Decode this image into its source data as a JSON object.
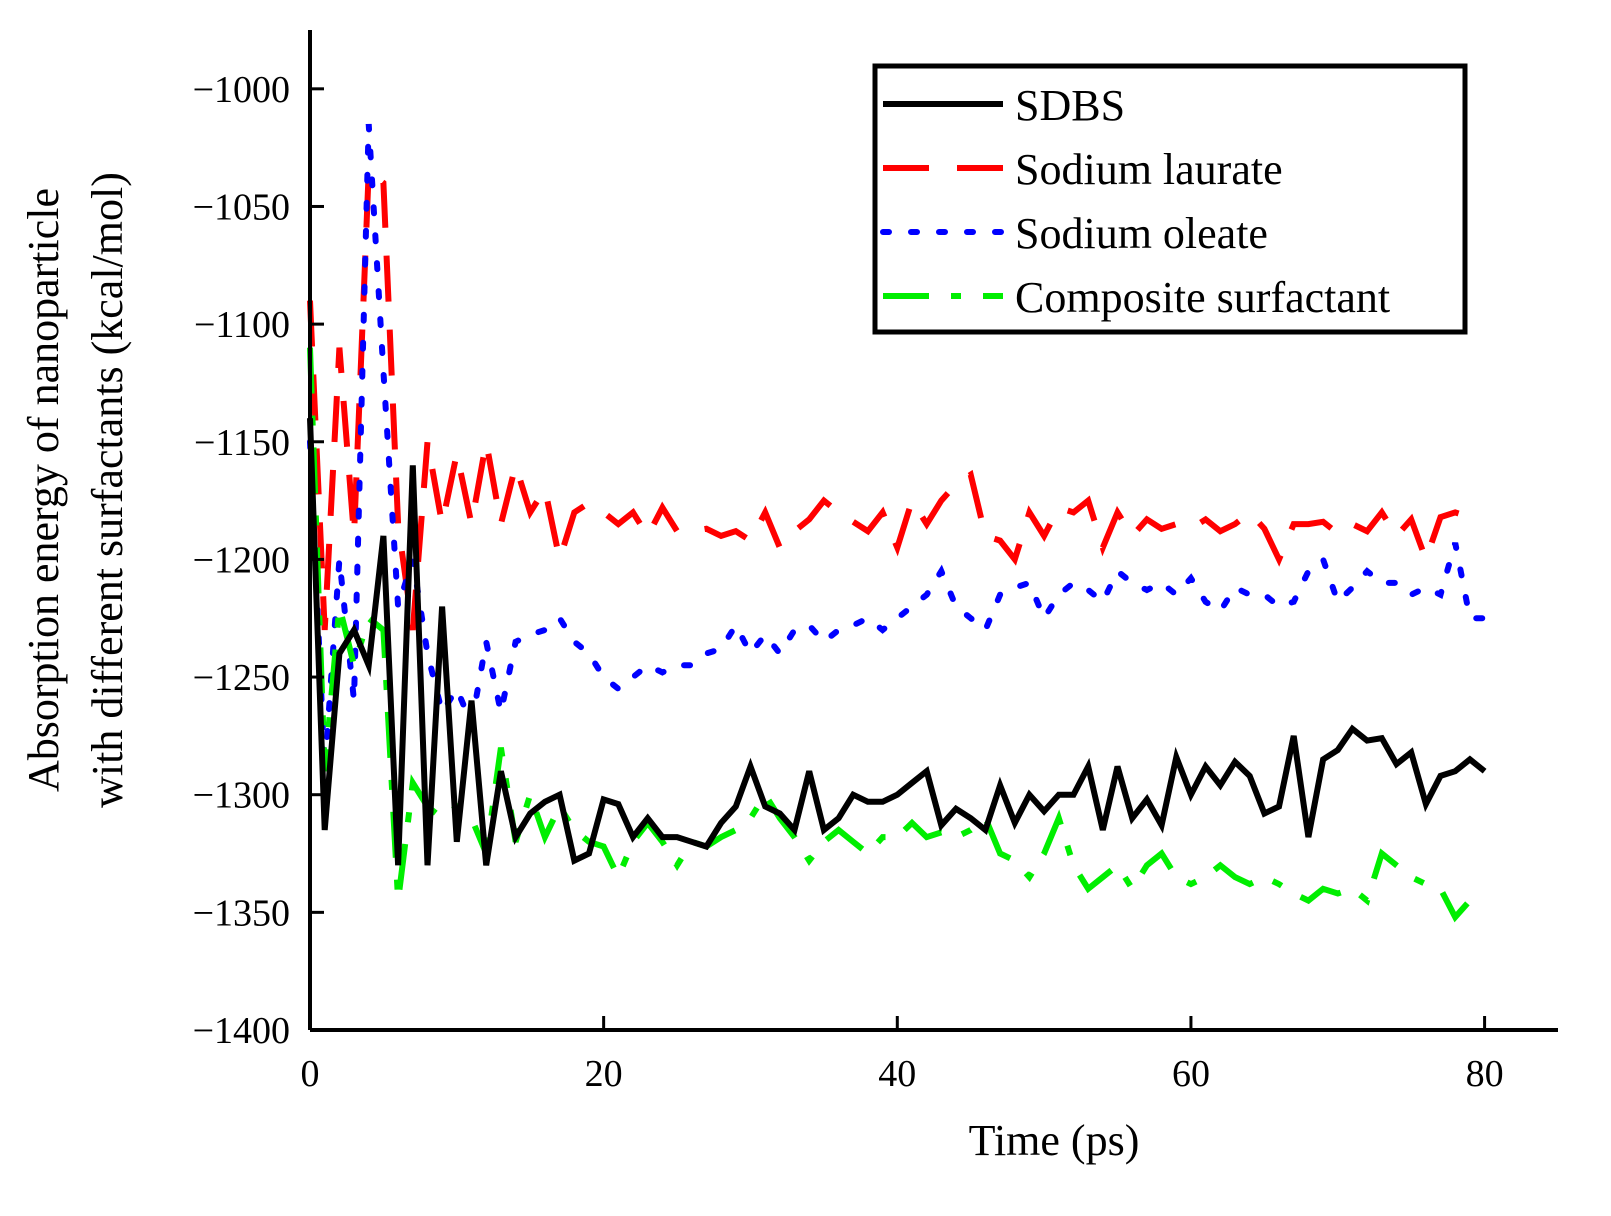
{
  "chart_data": {
    "type": "line",
    "xlabel": "Time (ps)",
    "ylabel_lines": [
      "Absorption energy of nanoparticle",
      "with different surfactants (kcal/mol)"
    ],
    "xlim": [
      0,
      85
    ],
    "ylim": [
      -1400,
      -975
    ],
    "xticks": [
      0,
      20,
      40,
      60,
      80
    ],
    "yticks": [
      -1000,
      -1050,
      -1100,
      -1150,
      -1200,
      -1250,
      -1300,
      -1350,
      -1400
    ],
    "legend_position": "top-right",
    "series": [
      {
        "name": "SDBS",
        "color": "#000000",
        "style": "solid",
        "x": [
          0,
          1,
          2,
          3,
          4,
          5,
          6,
          7,
          8,
          9,
          10,
          11,
          12,
          13,
          14,
          15,
          16,
          17,
          18,
          19,
          20,
          21,
          22,
          23,
          24,
          25,
          26,
          27,
          28,
          29,
          30,
          31,
          32,
          33,
          34,
          35,
          36,
          37,
          38,
          39,
          40,
          41,
          42,
          43,
          44,
          45,
          46,
          47,
          48,
          49,
          50,
          51,
          52,
          53,
          54,
          55,
          56,
          57,
          58,
          59,
          60,
          61,
          62,
          63,
          64,
          65,
          66,
          67,
          68,
          69,
          70,
          71,
          72,
          73,
          74,
          75,
          76,
          77,
          78,
          79,
          80
        ],
        "y": [
          -1140,
          -1315,
          -1240,
          -1230,
          -1245,
          -1190,
          -1330,
          -1160,
          -1330,
          -1220,
          -1320,
          -1260,
          -1330,
          -1290,
          -1318,
          -1308,
          -1303,
          -1300,
          -1328,
          -1325,
          -1302,
          -1304,
          -1318,
          -1310,
          -1318,
          -1318,
          -1320,
          -1322,
          -1312,
          -1305,
          -1288,
          -1305,
          -1308,
          -1315,
          -1290,
          -1315,
          -1310,
          -1300,
          -1303,
          -1303,
          -1300,
          -1295,
          -1290,
          -1313,
          -1306,
          -1310,
          -1315,
          -1296,
          -1312,
          -1300,
          -1307,
          -1300,
          -1300,
          -1288,
          -1315,
          -1288,
          -1310,
          -1302,
          -1313,
          -1284,
          -1300,
          -1288,
          -1296,
          -1286,
          -1292,
          -1308,
          -1305,
          -1275,
          -1318,
          -1285,
          -1281,
          -1272,
          -1277,
          -1276,
          -1287,
          -1282,
          -1304,
          -1292,
          -1290,
          -1285,
          -1290
        ]
      },
      {
        "name": "Sodium laurate",
        "color": "#ff0000",
        "style": "dashed",
        "x": [
          0,
          1,
          2,
          3,
          4,
          5,
          6,
          7,
          8,
          9,
          10,
          11,
          12,
          13,
          14,
          15,
          16,
          17,
          18,
          19,
          20,
          21,
          22,
          23,
          24,
          25,
          26,
          27,
          28,
          29,
          30,
          31,
          32,
          33,
          34,
          35,
          36,
          37,
          38,
          39,
          40,
          41,
          42,
          43,
          44,
          45,
          46,
          47,
          48,
          49,
          50,
          51,
          52,
          53,
          54,
          55,
          56,
          57,
          58,
          59,
          60,
          61,
          62,
          63,
          64,
          65,
          66,
          67,
          68,
          69,
          70,
          71,
          72,
          73,
          74,
          75,
          76,
          77,
          78,
          79,
          80
        ],
        "y": [
          -1090,
          -1230,
          -1110,
          -1190,
          -1035,
          -1040,
          -1185,
          -1230,
          -1150,
          -1185,
          -1155,
          -1185,
          -1150,
          -1185,
          -1160,
          -1180,
          -1170,
          -1200,
          -1180,
          -1176,
          -1180,
          -1185,
          -1180,
          -1190,
          -1178,
          -1188,
          -1188,
          -1187,
          -1190,
          -1188,
          -1192,
          -1180,
          -1195,
          -1188,
          -1183,
          -1175,
          -1180,
          -1184,
          -1188,
          -1180,
          -1195,
          -1175,
          -1185,
          -1175,
          -1168,
          -1164,
          -1190,
          -1192,
          -1200,
          -1180,
          -1190,
          -1178,
          -1180,
          -1175,
          -1195,
          -1180,
          -1190,
          -1183,
          -1187,
          -1185,
          -1187,
          -1183,
          -1188,
          -1185,
          -1180,
          -1187,
          -1200,
          -1185,
          -1185,
          -1184,
          -1189,
          -1185,
          -1188,
          -1180,
          -1190,
          -1183,
          -1200,
          -1182,
          -1180,
          -1182,
          -1183
        ]
      },
      {
        "name": "Sodium oleate",
        "color": "#0000ff",
        "style": "dotted",
        "x": [
          0,
          1,
          2,
          3,
          4,
          5,
          6,
          7,
          8,
          9,
          10,
          11,
          12,
          13,
          14,
          15,
          16,
          17,
          18,
          19,
          20,
          21,
          22,
          23,
          24,
          25,
          26,
          27,
          28,
          29,
          30,
          31,
          32,
          33,
          34,
          35,
          36,
          37,
          38,
          39,
          40,
          41,
          42,
          43,
          44,
          45,
          46,
          47,
          48,
          49,
          50,
          51,
          52,
          53,
          54,
          55,
          56,
          57,
          58,
          59,
          60,
          61,
          62,
          63,
          64,
          65,
          66,
          67,
          68,
          69,
          70,
          71,
          72,
          73,
          74,
          75,
          76,
          77,
          78,
          79,
          80
        ],
        "y": [
          -1150,
          -1290,
          -1200,
          -1260,
          -1015,
          -1120,
          -1220,
          -1200,
          -1240,
          -1265,
          -1255,
          -1270,
          -1235,
          -1265,
          -1235,
          -1232,
          -1230,
          -1225,
          -1235,
          -1240,
          -1250,
          -1255,
          -1250,
          -1245,
          -1248,
          -1245,
          -1245,
          -1240,
          -1238,
          -1228,
          -1240,
          -1232,
          -1240,
          -1230,
          -1228,
          -1235,
          -1230,
          -1228,
          -1225,
          -1230,
          -1225,
          -1220,
          -1215,
          -1205,
          -1220,
          -1225,
          -1230,
          -1215,
          -1212,
          -1210,
          -1225,
          -1215,
          -1210,
          -1213,
          -1218,
          -1205,
          -1210,
          -1213,
          -1210,
          -1215,
          -1208,
          -1218,
          -1222,
          -1212,
          -1215,
          -1215,
          -1220,
          -1218,
          -1205,
          -1200,
          -1218,
          -1212,
          -1205,
          -1210,
          -1210,
          -1215,
          -1212,
          -1215,
          -1193,
          -1225,
          -1225
        ]
      },
      {
        "name": "Composite surfactant",
        "color": "#00ee00",
        "style": "dashdot",
        "x": [
          0,
          1,
          2,
          3,
          4,
          5,
          6,
          7,
          8,
          9,
          10,
          11,
          12,
          13,
          14,
          15,
          16,
          17,
          18,
          19,
          20,
          21,
          22,
          23,
          24,
          25,
          26,
          27,
          28,
          29,
          30,
          31,
          32,
          33,
          34,
          35,
          36,
          37,
          38,
          39,
          40,
          41,
          42,
          43,
          44,
          45,
          46,
          47,
          48,
          49,
          50,
          51,
          52,
          53,
          54,
          55,
          56,
          57,
          58,
          59,
          60,
          61,
          62,
          63,
          64,
          65,
          66,
          67,
          68,
          69,
          70,
          71,
          72,
          73,
          74,
          75,
          76,
          77,
          78,
          79,
          80
        ],
        "y": [
          -1110,
          -1290,
          -1220,
          -1245,
          -1225,
          -1230,
          -1345,
          -1295,
          -1305,
          -1310,
          -1305,
          -1310,
          -1325,
          -1280,
          -1320,
          -1300,
          -1318,
          -1305,
          -1315,
          -1320,
          -1322,
          -1335,
          -1320,
          -1312,
          -1320,
          -1330,
          -1320,
          -1322,
          -1318,
          -1315,
          -1310,
          -1300,
          -1310,
          -1318,
          -1328,
          -1320,
          -1315,
          -1320,
          -1325,
          -1318,
          -1318,
          -1312,
          -1318,
          -1316,
          -1318,
          -1315,
          -1310,
          -1325,
          -1328,
          -1335,
          -1325,
          -1310,
          -1330,
          -1340,
          -1335,
          -1330,
          -1340,
          -1330,
          -1325,
          -1335,
          -1338,
          -1335,
          -1330,
          -1335,
          -1338,
          -1335,
          -1338,
          -1342,
          -1345,
          -1340,
          -1342,
          -1340,
          -1345,
          -1325,
          -1330,
          -1335,
          -1338,
          -1340,
          -1352,
          -1345,
          -1345
        ]
      }
    ]
  }
}
